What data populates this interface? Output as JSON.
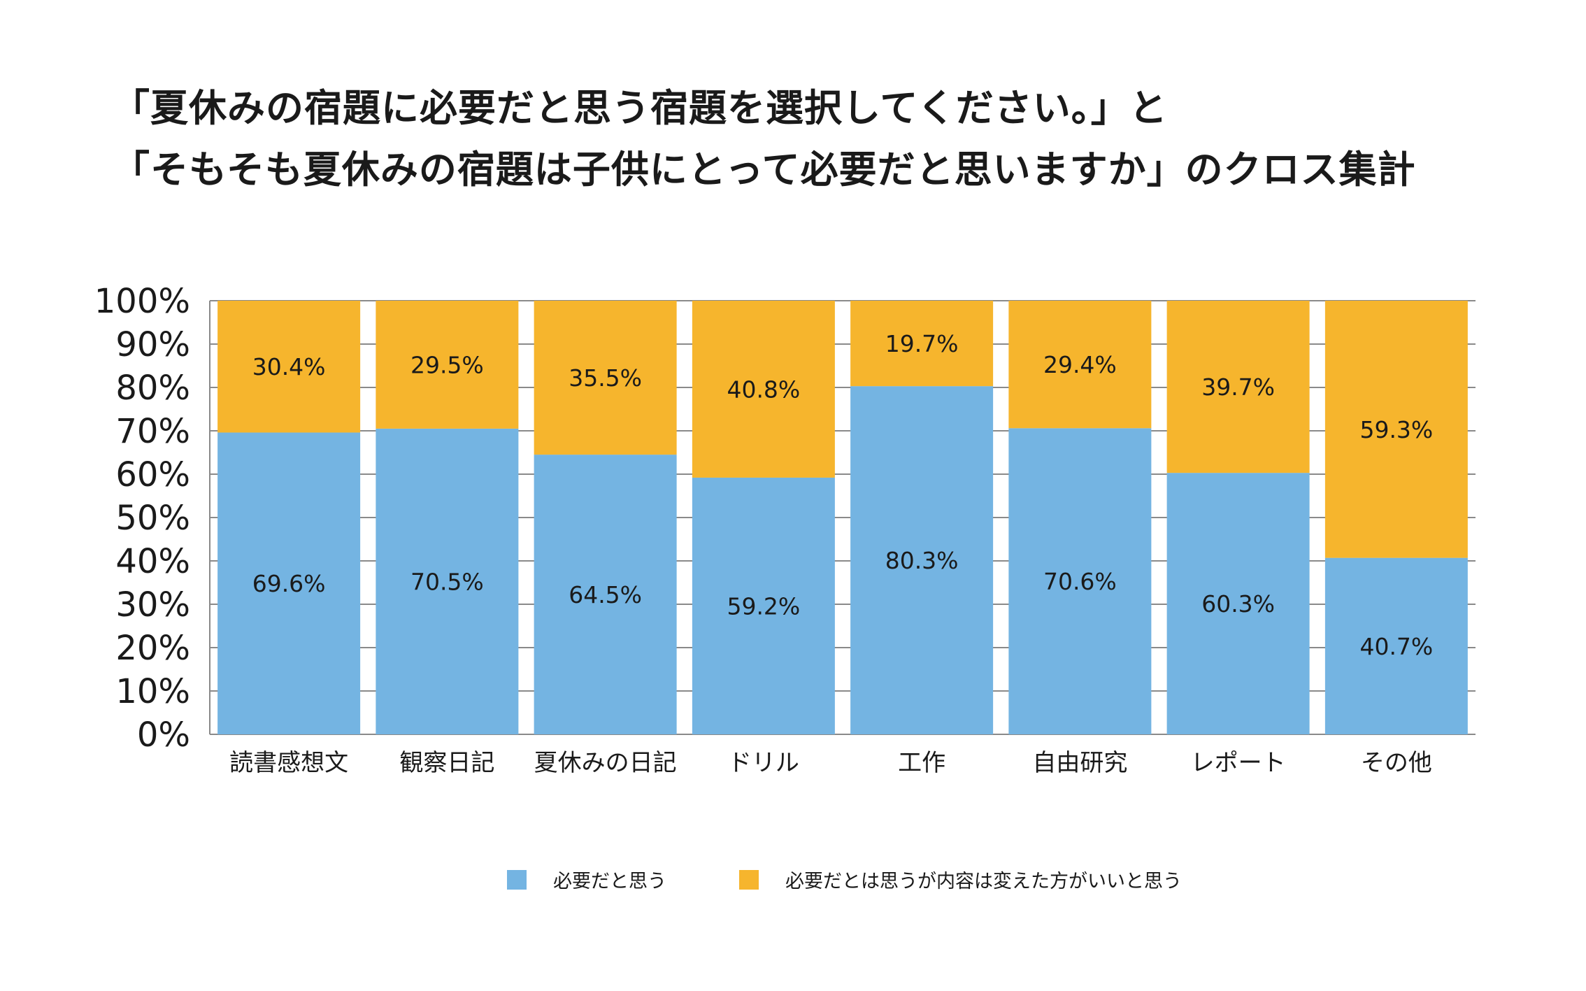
{
  "title_lines": [
    "「夏休みの宿題に必要だと思う宿題を選択してください。」と",
    "「そもそも夏休みの宿題は子供にとって必要だと思いますか」のクロス集計"
  ],
  "colors": {
    "series1": "#74b4e2",
    "series2": "#f6b52d",
    "grid": "#8a8a8a"
  },
  "chart_data": {
    "type": "bar",
    "stacked": true,
    "title": "「夏休みの宿題に必要だと思う宿題を選択してください。」と「そもそも夏休みの宿題は子供にとって必要だと思いますか」のクロス集計",
    "categories": [
      "読書感想文",
      "観察日記",
      "夏休みの日記",
      "ドリル",
      "工作",
      "自由研究",
      "レポート",
      "その他"
    ],
    "series": [
      {
        "name": "必要だと思う",
        "values": [
          69.6,
          70.5,
          64.5,
          59.2,
          80.3,
          70.6,
          60.3,
          40.7
        ]
      },
      {
        "name": "必要だとは思うが内容は変えた方がいいと思う",
        "values": [
          30.4,
          29.5,
          35.5,
          40.8,
          19.7,
          29.4,
          39.7,
          59.3
        ]
      }
    ],
    "ylim": [
      0,
      100
    ],
    "yticks": [
      "0%",
      "10%",
      "20%",
      "30%",
      "40%",
      "50%",
      "60%",
      "70%",
      "80%",
      "90%",
      "100%"
    ],
    "value_suffix": "%",
    "grid": true,
    "legend_position": "bottom"
  }
}
